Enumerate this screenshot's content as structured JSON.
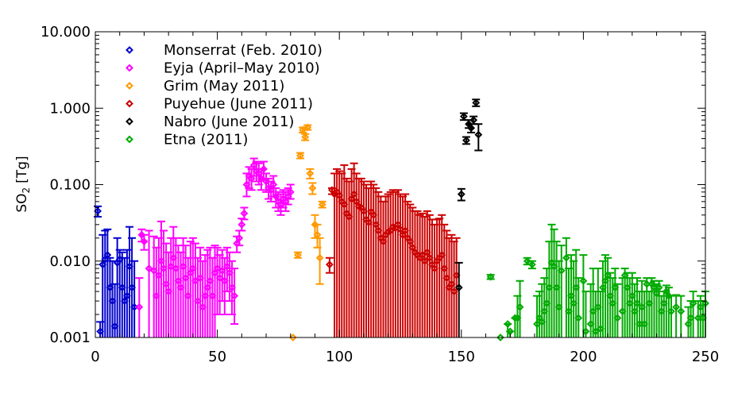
{
  "chart_data": {
    "type": "scatter",
    "title": "",
    "xlabel": "",
    "ylabel": "SO2 [Tg]",
    "ylabel_main": "SO",
    "ylabel_sub": "2",
    "ylabel_unit": "[Tg]",
    "yscale": "log",
    "xlim": [
      0,
      250
    ],
    "ylim": [
      0.001,
      10
    ],
    "xticks": [
      0,
      50,
      100,
      150,
      200,
      250
    ],
    "xtick_labels": [
      "0",
      "50",
      "100",
      "150",
      "200",
      "250"
    ],
    "yticks": [
      0.001,
      0.01,
      0.1,
      1,
      10
    ],
    "ytick_labels": [
      "0.001",
      "0.010",
      "0.100",
      "1.000",
      "10.000"
    ],
    "legend_position": "top-left",
    "series": [
      {
        "name": "Monserrat (Feb. 2010)",
        "color": "#0000cc",
        "x": [
          1,
          2,
          3,
          4,
          5,
          6,
          7,
          8,
          9,
          10,
          11,
          12,
          13,
          14,
          15,
          16
        ],
        "y": [
          0.045,
          0.0012,
          0.009,
          0.0105,
          0.012,
          0.0045,
          0.003,
          0.0014,
          0.0095,
          0.0105,
          0.0045,
          0.003,
          0.0035,
          0.0085,
          0.0045,
          0.0025
        ],
        "err_low": [
          0.038,
          0.001,
          0.001,
          0.001,
          0.001,
          0.001,
          0.001,
          0.001,
          0.001,
          0.001,
          0.001,
          0.001,
          0.001,
          0.001,
          0.001,
          0.001
        ],
        "err_high": [
          0.052,
          0.0016,
          0.022,
          0.025,
          0.026,
          0.011,
          0.01,
          0.005,
          0.02,
          0.014,
          0.013,
          0.011,
          0.014,
          0.028,
          0.02,
          0.01
        ]
      },
      {
        "name": "Eyja (April–May 2010)",
        "color": "#ff00ff",
        "x": [
          18,
          19,
          20,
          22,
          24,
          25,
          26,
          27,
          28,
          29,
          30,
          31,
          32,
          33,
          34,
          35,
          36,
          37,
          38,
          39,
          40,
          41,
          42,
          43,
          44,
          45,
          46,
          47,
          48,
          49,
          50,
          51,
          52,
          53,
          54,
          55,
          56,
          57,
          58,
          59,
          60,
          61,
          62,
          63,
          64,
          65,
          66,
          67,
          68,
          69,
          70,
          71,
          72,
          73,
          74,
          75,
          76,
          77,
          78,
          79,
          80
        ],
        "y": [
          0.0025,
          0.022,
          0.018,
          0.008,
          0.0075,
          0.0035,
          0.0065,
          0.01,
          0.008,
          0.005,
          0.004,
          0.0085,
          0.011,
          0.008,
          0.0055,
          0.0045,
          0.0085,
          0.006,
          0.0035,
          0.007,
          0.008,
          0.0055,
          0.003,
          0.006,
          0.0025,
          0.0035,
          0.0045,
          0.0055,
          0.0035,
          0.007,
          0.008,
          0.006,
          0.0075,
          0.0055,
          0.0085,
          0.007,
          0.0045,
          0.0035,
          0.017,
          0.02,
          0.03,
          0.042,
          0.1,
          0.13,
          0.12,
          0.18,
          0.15,
          0.14,
          0.12,
          0.16,
          0.11,
          0.09,
          0.085,
          0.1,
          0.07,
          0.06,
          0.055,
          0.065,
          0.06,
          0.07,
          0.08
        ],
        "err_low": [
          0.001,
          0.018,
          0.014,
          0.001,
          0.001,
          0.001,
          0.001,
          0.001,
          0.001,
          0.001,
          0.001,
          0.001,
          0.001,
          0.001,
          0.001,
          0.001,
          0.001,
          0.001,
          0.001,
          0.001,
          0.001,
          0.001,
          0.001,
          0.001,
          0.001,
          0.001,
          0.001,
          0.001,
          0.001,
          0.001,
          0.002,
          0.002,
          0.003,
          0.002,
          0.004,
          0.003,
          0.002,
          0.0015,
          0.013,
          0.016,
          0.025,
          0.035,
          0.07,
          0.09,
          0.085,
          0.13,
          0.11,
          0.1,
          0.085,
          0.12,
          0.08,
          0.065,
          0.06,
          0.07,
          0.05,
          0.045,
          0.04,
          0.05,
          0.045,
          0.055,
          0.065
        ],
        "err_high": [
          0.006,
          0.026,
          0.022,
          0.025,
          0.021,
          0.015,
          0.02,
          0.033,
          0.025,
          0.017,
          0.013,
          0.02,
          0.028,
          0.02,
          0.016,
          0.013,
          0.02,
          0.016,
          0.011,
          0.018,
          0.02,
          0.017,
          0.011,
          0.015,
          0.01,
          0.012,
          0.014,
          0.015,
          0.011,
          0.016,
          0.015,
          0.012,
          0.014,
          0.011,
          0.015,
          0.013,
          0.01,
          0.008,
          0.021,
          0.025,
          0.036,
          0.05,
          0.14,
          0.17,
          0.16,
          0.22,
          0.2,
          0.19,
          0.16,
          0.2,
          0.14,
          0.12,
          0.11,
          0.13,
          0.09,
          0.08,
          0.075,
          0.085,
          0.08,
          0.09,
          0.1
        ]
      },
      {
        "name": "Grim (May 2011)",
        "color": "#ff9900",
        "x": [
          81,
          83,
          84,
          85,
          86,
          87,
          88,
          89,
          90,
          91,
          92,
          93
        ],
        "y": [
          0.0009,
          0.012,
          0.24,
          0.52,
          0.42,
          0.56,
          0.14,
          0.09,
          0.03,
          0.022,
          0.011,
          0.055
        ],
        "err_low": [
          0.0009,
          0.011,
          0.22,
          0.48,
          0.38,
          0.52,
          0.12,
          0.075,
          0.02,
          0.015,
          0.005,
          0.05
        ],
        "err_high": [
          0.0009,
          0.013,
          0.26,
          0.56,
          0.46,
          0.6,
          0.16,
          0.105,
          0.04,
          0.03,
          0.02,
          0.06
        ]
      },
      {
        "name": "Puyehue (June 2011)",
        "color": "#cc0000",
        "x": [
          96,
          97,
          98,
          99,
          100,
          101,
          102,
          103,
          104,
          105,
          106,
          107,
          108,
          109,
          110,
          111,
          112,
          113,
          114,
          115,
          116,
          117,
          118,
          119,
          120,
          121,
          122,
          123,
          124,
          125,
          126,
          127,
          128,
          129,
          130,
          131,
          132,
          133,
          134,
          135,
          136,
          137,
          138,
          139,
          140,
          141,
          142,
          143,
          144,
          145,
          146,
          147,
          148
        ],
        "y": [
          0.009,
          0.085,
          0.075,
          0.08,
          0.072,
          0.06,
          0.055,
          0.042,
          0.038,
          0.065,
          0.075,
          0.06,
          0.052,
          0.05,
          0.045,
          0.035,
          0.032,
          0.044,
          0.04,
          0.03,
          0.025,
          0.02,
          0.018,
          0.022,
          0.024,
          0.025,
          0.028,
          0.027,
          0.03,
          0.026,
          0.022,
          0.025,
          0.02,
          0.018,
          0.015,
          0.013,
          0.012,
          0.011,
          0.012,
          0.01,
          0.013,
          0.011,
          0.009,
          0.008,
          0.01,
          0.011,
          0.012,
          0.008,
          0.006,
          0.0045,
          0.005,
          0.004,
          0.0065
        ],
        "err_low": [
          0.007,
          0.075,
          0.001,
          0.001,
          0.001,
          0.001,
          0.001,
          0.001,
          0.001,
          0.001,
          0.001,
          0.001,
          0.001,
          0.001,
          0.001,
          0.001,
          0.001,
          0.001,
          0.001,
          0.001,
          0.001,
          0.001,
          0.001,
          0.001,
          0.001,
          0.001,
          0.001,
          0.001,
          0.001,
          0.001,
          0.001,
          0.001,
          0.001,
          0.001,
          0.001,
          0.001,
          0.001,
          0.001,
          0.001,
          0.001,
          0.001,
          0.001,
          0.001,
          0.001,
          0.001,
          0.001,
          0.001,
          0.001,
          0.001,
          0.001,
          0.001,
          0.001,
          0.001
        ],
        "err_high": [
          0.011,
          0.09,
          0.14,
          0.16,
          0.15,
          0.14,
          0.18,
          0.12,
          0.11,
          0.16,
          0.19,
          0.14,
          0.12,
          0.12,
          0.11,
          0.1,
          0.09,
          0.11,
          0.1,
          0.09,
          0.08,
          0.07,
          0.06,
          0.07,
          0.075,
          0.08,
          0.085,
          0.08,
          0.085,
          0.075,
          0.07,
          0.075,
          0.06,
          0.055,
          0.05,
          0.045,
          0.045,
          0.04,
          0.042,
          0.038,
          0.045,
          0.04,
          0.035,
          0.03,
          0.035,
          0.036,
          0.04,
          0.03,
          0.025,
          0.02,
          0.022,
          0.018,
          0.02
        ]
      },
      {
        "name": "Nabro (June 2011)",
        "color": "#000000",
        "x": [
          149,
          150,
          151,
          152,
          153,
          154,
          155,
          156,
          157
        ],
        "y": [
          0.0045,
          0.075,
          0.78,
          0.38,
          0.62,
          0.55,
          0.7,
          1.18,
          0.45
        ],
        "err_low": [
          0.001,
          0.062,
          0.7,
          0.34,
          0.55,
          0.48,
          0.62,
          1.06,
          0.28
        ],
        "err_high": [
          0.0095,
          0.088,
          0.86,
          0.42,
          0.7,
          0.62,
          0.78,
          1.3,
          0.62
        ]
      },
      {
        "name": "Etna (2011)",
        "color": "#00aa00",
        "x": [
          162,
          166,
          169,
          170,
          172,
          173,
          174,
          177,
          179,
          181,
          182,
          183,
          184,
          185,
          186,
          187,
          188,
          189,
          190,
          191,
          193,
          194,
          195,
          196,
          197,
          198,
          200,
          201,
          203,
          204,
          205,
          206,
          207,
          208,
          209,
          210,
          211,
          212,
          213,
          214,
          216,
          217,
          218,
          219,
          220,
          221,
          222,
          223,
          224,
          225,
          226,
          227,
          228,
          229,
          230,
          231,
          232,
          233,
          234,
          235,
          236,
          238,
          240,
          243,
          244,
          245,
          247,
          248,
          249,
          250
        ],
        "y": [
          0.0062,
          0.001,
          0.0015,
          0.0012,
          0.0018,
          0.0018,
          0.0025,
          0.01,
          0.009,
          0.0015,
          0.0018,
          0.0016,
          0.0022,
          0.0028,
          0.0045,
          0.0095,
          0.0085,
          0.0045,
          0.0025,
          0.0075,
          0.011,
          0.0022,
          0.0035,
          0.0028,
          0.0045,
          0.0018,
          0.0055,
          0.0012,
          0.0015,
          0.0022,
          0.0012,
          0.0025,
          0.0013,
          0.0045,
          0.0055,
          0.0065,
          0.0035,
          0.0028,
          0.0045,
          0.0018,
          0.0022,
          0.0065,
          0.0045,
          0.0028,
          0.0035,
          0.0022,
          0.0028,
          0.0015,
          0.0025,
          0.0015,
          0.005,
          0.0028,
          0.005,
          0.0045,
          0.0038,
          0.0045,
          0.0022,
          0.0028,
          0.004,
          0.0035,
          0.0022,
          0.0025,
          0.0022,
          0.0015,
          0.0018,
          0.0028,
          0.0018,
          0.0025,
          0.0018,
          0.0028
        ],
        "err_low": [
          0.0058,
          0.001,
          0.001,
          0.001,
          0.001,
          0.001,
          0.001,
          0.009,
          0.008,
          0.001,
          0.001,
          0.001,
          0.001,
          0.001,
          0.001,
          0.001,
          0.001,
          0.001,
          0.001,
          0.001,
          0.001,
          0.001,
          0.001,
          0.001,
          0.001,
          0.001,
          0.001,
          0.001,
          0.001,
          0.001,
          0.001,
          0.001,
          0.001,
          0.001,
          0.001,
          0.001,
          0.001,
          0.001,
          0.001,
          0.001,
          0.001,
          0.001,
          0.001,
          0.001,
          0.001,
          0.001,
          0.001,
          0.001,
          0.001,
          0.001,
          0.001,
          0.001,
          0.001,
          0.001,
          0.001,
          0.001,
          0.001,
          0.001,
          0.001,
          0.001,
          0.001,
          0.001,
          0.001,
          0.001,
          0.001,
          0.001,
          0.001,
          0.001,
          0.001,
          0.001
        ],
        "err_high": [
          0.0066,
          0.001,
          0.0015,
          0.0012,
          0.0018,
          0.0035,
          0.0055,
          0.011,
          0.01,
          0.0035,
          0.004,
          0.005,
          0.006,
          0.008,
          0.018,
          0.03,
          0.026,
          0.018,
          0.01,
          0.016,
          0.02,
          0.008,
          0.012,
          0.01,
          0.014,
          0.006,
          0.012,
          0.004,
          0.005,
          0.008,
          0.004,
          0.008,
          0.004,
          0.01,
          0.012,
          0.011,
          0.007,
          0.006,
          0.008,
          0.005,
          0.006,
          0.008,
          0.007,
          0.006,
          0.007,
          0.005,
          0.006,
          0.004,
          0.0055,
          0.004,
          0.006,
          0.004,
          0.006,
          0.0055,
          0.005,
          0.0055,
          0.0035,
          0.004,
          0.0048,
          0.0045,
          0.0035,
          0.0036,
          0.0035,
          0.0025,
          0.003,
          0.004,
          0.003,
          0.0035,
          0.003,
          0.004
        ]
      }
    ]
  }
}
